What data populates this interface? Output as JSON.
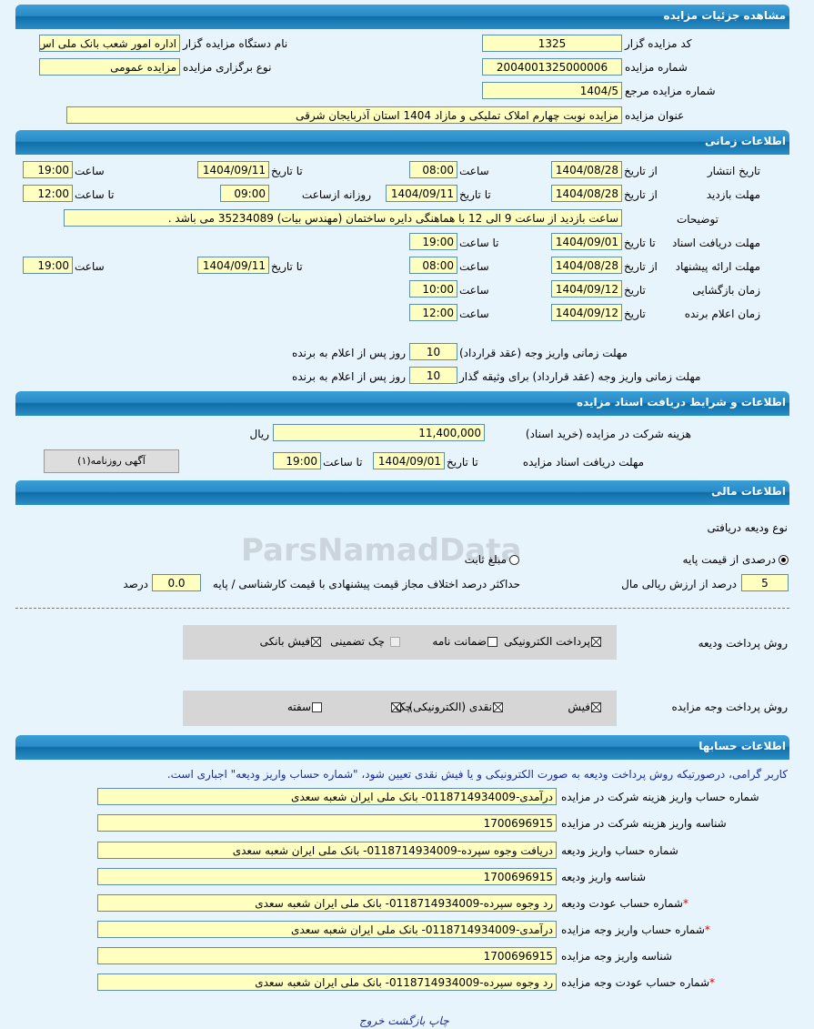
{
  "sections": {
    "details": "مشاهده جزئیات مزایده",
    "timing": "اطلاعات زمانی",
    "docs": "اطلاعات و شرایط دریافت اسناد مزایده",
    "finance": "اطلاعات مالی",
    "accounts": "اطلاعات حسابها"
  },
  "details": {
    "org_code_label": "کد مزایده گزار",
    "org_code": "1325",
    "org_name_label": "نام دستگاه مزایده گزار",
    "org_name": "اداره امور شعب بانک ملی اس",
    "auction_no_label": "شماره مزایده",
    "auction_no": "2004001325000006",
    "type_label": "نوع برگزاری مزایده",
    "type": "مزایده عمومی",
    "ref_no_label": "شماره مزایده مرجع",
    "ref_no": "1404/5",
    "title_label": "عنوان مزایده",
    "title": "مزایده نوبت چهارم املاک تملیکی و مازاد 1404 استان آذربایجان شرقی"
  },
  "timing": {
    "from_date": "از تاریخ",
    "to_date": "تا تاریخ",
    "date": "تاریخ",
    "time": "ساعت",
    "to_time": "تا ساعت",
    "daily_from": "روزانه ازساعت",
    "publish": {
      "label": "تاریخ انتشار",
      "from": "1404/08/28",
      "from_time": "08:00",
      "to": "1404/09/11",
      "to_time": "19:00"
    },
    "visit": {
      "label": "مهلت بازدید",
      "from": "1404/08/28",
      "to": "1404/09/11",
      "daily_from": "09:00",
      "to_time": "12:00"
    },
    "notes": {
      "label": "توضیحات",
      "value": "ساعت بازدید از ساعت 9 الی 12 با هماهنگی دایره ساختمان (مهندس بیات) 35234089 می باشد ."
    },
    "docs_receive": {
      "label": "مهلت دریافت اسناد",
      "to": "1404/09/01",
      "to_time": "19:00"
    },
    "offer": {
      "label": "مهلت ارائه پیشنهاد",
      "from": "1404/08/28",
      "from_time": "08:00",
      "to": "1404/09/11",
      "to_time": "19:00"
    },
    "opening": {
      "label": "زمان بازگشایی",
      "date": "1404/09/12",
      "time": "10:00"
    },
    "winner": {
      "label": "زمان اعلام برنده",
      "date": "1404/09/12",
      "time": "12:00"
    },
    "pay_deadline": {
      "label": "مهلت زمانی واریز وجه (عقد قرارداد)",
      "value": "10",
      "suffix": "روز پس از اعلام به برنده"
    },
    "pay_deadline_collateral": {
      "label": "مهلت زمانی واریز وجه (عقد قرارداد) برای وثیقه گذار",
      "value": "10",
      "suffix": "روز پس از اعلام به برنده"
    }
  },
  "docs": {
    "fee_label": "هزینه شرکت در مزایده (خرید اسناد)",
    "fee": "11,400,000",
    "currency": "ریال",
    "deadline_label": "مهلت دریافت اسناد مزایده",
    "to_date_label": "تا تاریخ",
    "to_date": "1404/09/01",
    "to_time_label": "تا ساعت",
    "to_time": "19:00",
    "newspaper_button": "آگهی روزنامه(۱)"
  },
  "finance": {
    "deposit_type_label": "نوع ودیعه دریافتی",
    "radio_percent": "درصدی از قیمت پایه",
    "radio_percent_checked": true,
    "radio_fixed": "مبلغ ثابت",
    "radio_fixed_checked": false,
    "percent": "5",
    "percent_label": "درصد از ارزش ریالی مال",
    "max_diff_label": "حداکثر درصد اختلاف مجاز قیمت پیشنهادی با قیمت کارشناسی / پایه",
    "max_diff": "0.0",
    "percent_unit": "درصد",
    "deposit_methods_label": "روش پرداخت ودیعه",
    "deposit_methods": [
      {
        "label": "پرداخت الکترونیکی",
        "checked": true
      },
      {
        "label": "ضمانت نامه",
        "checked": false
      },
      {
        "label": "چک تضمینی",
        "checked": false,
        "disabled": true
      },
      {
        "label": "فیش بانکی",
        "checked": true
      }
    ],
    "payment_methods_label": "روش پرداخت وجه مزایده",
    "payment_methods": [
      {
        "label": "فیش",
        "checked": true
      },
      {
        "label": "نقدی (الکترونیکی)",
        "checked": true
      },
      {
        "label": "چک",
        "checked": true
      },
      {
        "label": "سفته",
        "checked": false
      }
    ]
  },
  "accounts": {
    "notice": "کاربر گرامی، درصورتیکه روش پرداخت ودیعه به صورت الکترونیکی و یا فیش نقدی تعیین شود، \"شماره حساب واریز ودیعه\" اجباری است.",
    "rows": [
      {
        "label": "شماره حساب واریز هزینه شرکت در مزایده",
        "value": "درآمدی-0118714934009- بانک ملی ایران شعبه سعدی",
        "required": false
      },
      {
        "label": "شناسه واریز هزینه شرکت در مزایده",
        "value": "1700696915",
        "required": false
      },
      {
        "label": "شماره حساب واریز ودیعه",
        "value": "دریافت وجوه سپرده-0118714934009- بانک ملی ایران شعبه سعدی",
        "required": false
      },
      {
        "label": "شناسه واریز ودیعه",
        "value": "1700696915",
        "required": false
      },
      {
        "label": "شماره حساب عودت ودیعه",
        "value": "رد وجوه سپرده-0118714934009- بانک ملی ایران شعبه سعدی",
        "required": true
      },
      {
        "label": "شماره حساب واریز وجه مزایده",
        "value": "درآمدی-0118714934009- بانک ملی ایران شعبه سعدی",
        "required": true
      },
      {
        "label": "شناسه واریز وجه مزایده",
        "value": "1700696915",
        "required": false
      },
      {
        "label": "شماره حساب عودت وجه مزایده",
        "value": "رد وجوه سپرده-0118714934009- بانک ملی ایران شعبه سعدی",
        "required": true
      }
    ],
    "required_mark": "*"
  },
  "footer": {
    "print": "چاپ",
    "back": "بازگشت",
    "exit": "خروج"
  },
  "watermark": "ParsNamadData",
  "colors": {
    "field_bg": "#ffffc0",
    "header_blue": "#1a7ab8",
    "page_bg": "#e8f4fc",
    "link": "#1a2aa0",
    "required": "#dd0000"
  }
}
